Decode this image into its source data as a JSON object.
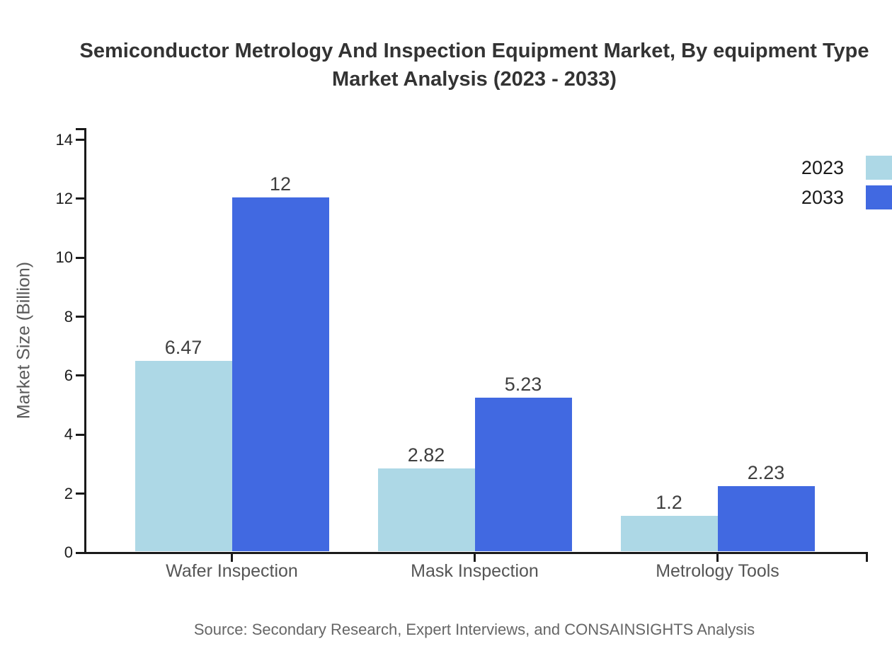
{
  "title": {
    "line1": "Semiconductor Metrology And Inspection Equipment Market, By equipment Type",
    "line2": "Market Analysis (2023 - 2033)"
  },
  "chart_data": {
    "type": "bar",
    "categories": [
      "Wafer Inspection",
      "Mask Inspection",
      "Metrology Tools"
    ],
    "series": [
      {
        "name": "2023",
        "color": "#ADD8E6",
        "values": [
          6.47,
          2.82,
          1.2
        ],
        "value_labels": [
          "6.47",
          "2.82",
          "1.2"
        ]
      },
      {
        "name": "2033",
        "color": "#4169E1",
        "values": [
          12,
          5.23,
          2.23
        ],
        "value_labels": [
          "12",
          "5.23",
          "2.23"
        ]
      }
    ],
    "xlabel": "",
    "ylabel": "Market Size (Billion)",
    "ylim": [
      0,
      14.4
    ],
    "yticks": [
      0,
      2,
      4,
      6,
      8,
      10,
      12,
      14
    ],
    "grid": false,
    "legend_position": "top-right"
  },
  "source": "Source: Secondary Research, Expert Interviews, and CONSAINSIGHTS Analysis",
  "colors": {
    "series_2023": "#ADD8E6",
    "series_2033": "#4169E1",
    "axis": "#1a1a1a",
    "title_text": "#333333",
    "category_text": "#555555",
    "value_text": "#3f3f3f",
    "source_text": "#666666",
    "background": "#ffffff"
  }
}
